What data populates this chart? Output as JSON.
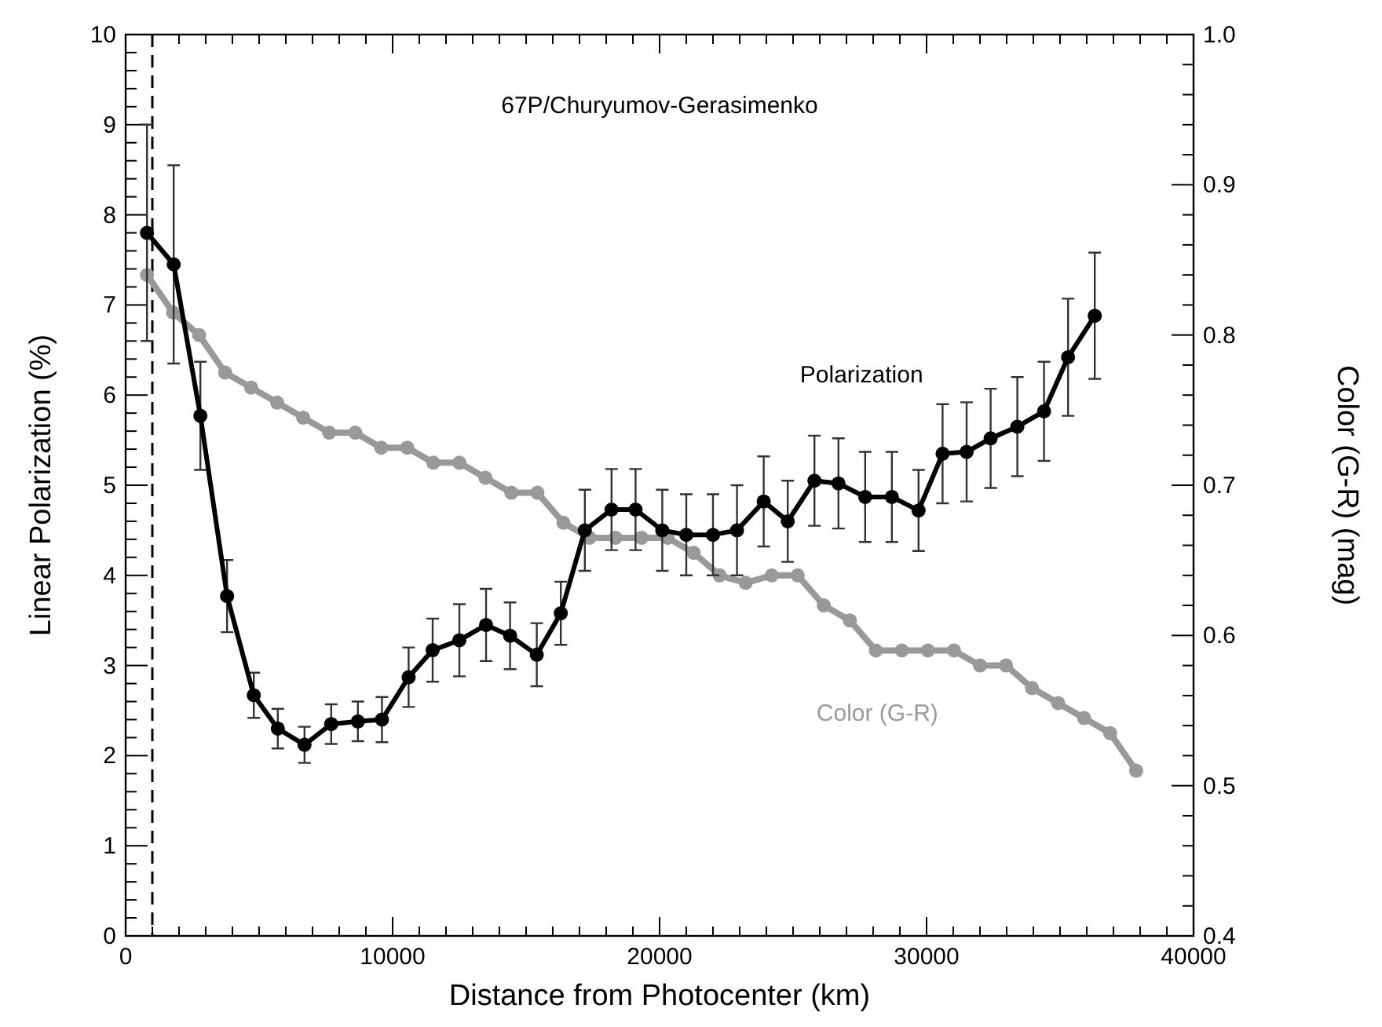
{
  "chart_data": {
    "type": "line",
    "xlabel": "Distance from Photocenter (km)",
    "ylabel": "Linear Polarization (%)",
    "y2label": "Color (G-R) (mag)",
    "annotations": [
      "67P/Churyumov-Gerasimenko"
    ],
    "xlim": [
      0,
      40000
    ],
    "xticks": [
      0,
      10000,
      20000,
      30000,
      40000
    ],
    "ylim": [
      0,
      10
    ],
    "yticks": [
      0,
      1,
      2,
      3,
      4,
      5,
      6,
      7,
      8,
      9,
      10
    ],
    "y2lim": [
      0.4,
      1.0
    ],
    "y2ticks": [
      {
        "value": 0.4,
        "label": "0.4"
      },
      {
        "value": 0.5,
        "label": "0.5"
      },
      {
        "value": 0.6,
        "label": "0.6"
      },
      {
        "value": 0.7,
        "label": "0.7"
      },
      {
        "value": 0.8,
        "label": "0.8"
      },
      {
        "value": 0.9,
        "label": "0.9"
      },
      {
        "value": 1.0,
        "label": "1.0"
      }
    ],
    "grid": false,
    "marker": "circle",
    "line_style": "solid",
    "ref_lines": [
      {
        "axis": "x",
        "value": 1000,
        "color": "#000000",
        "line_style": "dashed"
      }
    ],
    "series": [
      {
        "name": "Polarization",
        "color": "#000000",
        "x": [
          800,
          1800,
          2800,
          3800,
          4800,
          5700,
          6700,
          7700,
          8700,
          9600,
          10600,
          11500,
          12500,
          13500,
          14400,
          15400,
          16300,
          17200,
          18200,
          19100,
          20100,
          21000,
          22000,
          22900,
          23900,
          24800,
          25800,
          26700,
          27700,
          28700,
          29700,
          30600,
          31500,
          32400,
          33400,
          34400,
          35300,
          36300
        ],
        "values": [
          7.8,
          7.45,
          5.77,
          3.77,
          2.67,
          2.3,
          2.12,
          2.35,
          2.38,
          2.4,
          2.87,
          3.17,
          3.28,
          3.45,
          3.33,
          3.12,
          3.58,
          4.5,
          4.73,
          4.73,
          4.5,
          4.45,
          4.45,
          4.5,
          4.82,
          4.6,
          5.05,
          5.02,
          4.87,
          4.87,
          4.72,
          5.35,
          5.37,
          5.52,
          5.65,
          5.82,
          6.42,
          6.88
        ],
        "errors": [
          1.2,
          1.1,
          0.6,
          0.4,
          0.25,
          0.22,
          0.2,
          0.22,
          0.22,
          0.25,
          0.33,
          0.35,
          0.4,
          0.4,
          0.37,
          0.35,
          0.35,
          0.45,
          0.45,
          0.45,
          0.45,
          0.45,
          0.45,
          0.5,
          0.5,
          0.45,
          0.5,
          0.5,
          0.5,
          0.5,
          0.45,
          0.55,
          0.55,
          0.55,
          0.55,
          0.55,
          0.65,
          0.7
        ]
      },
      {
        "name": "Color (G-R)",
        "color": "#999999",
        "axis": "y2",
        "x": [
          800,
          1775,
          2750,
          3725,
          4700,
          5675,
          6650,
          7625,
          8600,
          9575,
          10550,
          11525,
          12500,
          13475,
          14450,
          15425,
          16400,
          17375,
          18350,
          19325,
          20300,
          21275,
          22250,
          23225,
          24200,
          25175,
          26150,
          27125,
          28100,
          29075,
          30050,
          31025,
          32000,
          32975,
          33950,
          34925,
          35900,
          36875,
          37850
        ],
        "values": [
          0.84,
          0.815,
          0.8,
          0.775,
          0.765,
          0.755,
          0.745,
          0.735,
          0.735,
          0.725,
          0.725,
          0.715,
          0.715,
          0.705,
          0.695,
          0.695,
          0.675,
          0.665,
          0.665,
          0.665,
          0.665,
          0.655,
          0.64,
          0.635,
          0.64,
          0.64,
          0.62,
          0.61,
          0.59,
          0.59,
          0.59,
          0.59,
          0.58,
          0.58,
          0.565,
          0.555,
          0.545,
          0.535,
          0.51
        ]
      }
    ]
  }
}
